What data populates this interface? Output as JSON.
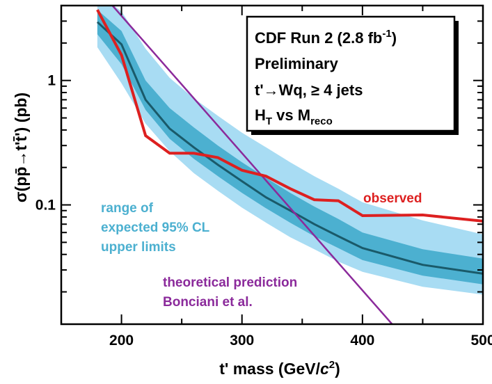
{
  "chart_data": {
    "type": "line",
    "title": "",
    "xlabel": "t' mass  (GeV/c²)",
    "xlabel_parts": {
      "main": "t' mass  (GeV/",
      "italic": "c",
      "sup": "2",
      "close": ")"
    },
    "ylabel": "σ(pp̄→t't̄') (pb)",
    "xlim": [
      150,
      500
    ],
    "ylim": [
      0.011,
      4.0
    ],
    "yscale": "log",
    "x_ticks": [
      200,
      300,
      400,
      500
    ],
    "x_tick_labels": [
      "200",
      "300",
      "400",
      "500"
    ],
    "y_ticks": [
      0.1,
      1
    ],
    "y_tick_labels": [
      "0.1",
      "1"
    ],
    "grid": false,
    "info_box": {
      "line1": "CDF Run 2 (2.8 fb",
      "line1_sup": "-1",
      "line1_close": ")",
      "line2": "Preliminary",
      "line3": "t'→Wq, ≥ 4 jets",
      "line4_h": "H",
      "line4_hsub": "T",
      "line4_mid": " vs M",
      "line4_msub": "reco"
    },
    "annotations": {
      "observed": "observed",
      "band_line1": "range of",
      "band_line2": "expected 95% CL",
      "band_line3": "upper limits",
      "theory_line1": "theoretical prediction",
      "theory_line2": "Bonciani et al."
    },
    "x": [
      180,
      200,
      220,
      240,
      260,
      280,
      300,
      320,
      340,
      360,
      380,
      400,
      450,
      500
    ],
    "series": [
      {
        "role": "band_2sigma",
        "color": "#a8dcf3",
        "low": [
          1.85,
          0.95,
          0.45,
          0.27,
          0.18,
          0.13,
          0.095,
          0.072,
          0.055,
          0.044,
          0.035,
          0.029,
          0.022,
          0.019
        ],
        "high": [
          5.0,
          3.6,
          1.8,
          1.05,
          0.72,
          0.52,
          0.38,
          0.29,
          0.22,
          0.17,
          0.135,
          0.105,
          0.075,
          0.058
        ]
      },
      {
        "role": "band_1sigma",
        "color": "#4cb0d0",
        "low": [
          2.35,
          1.35,
          0.58,
          0.34,
          0.235,
          0.17,
          0.125,
          0.094,
          0.072,
          0.056,
          0.045,
          0.036,
          0.027,
          0.023
        ],
        "high": [
          3.7,
          2.5,
          1.0,
          0.6,
          0.42,
          0.3,
          0.22,
          0.165,
          0.125,
          0.097,
          0.077,
          0.06,
          0.044,
          0.037
        ]
      },
      {
        "role": "expected",
        "color": "#1a5a6a",
        "values": [
          2.95,
          1.95,
          0.7,
          0.41,
          0.29,
          0.21,
          0.155,
          0.115,
          0.09,
          0.07,
          0.056,
          0.045,
          0.033,
          0.028
        ]
      },
      {
        "role": "observed",
        "name": "observed",
        "color": "#dd2020",
        "x": [
          180,
          200,
          220,
          240,
          260,
          280,
          300,
          320,
          340,
          360,
          380,
          400,
          450,
          500
        ],
        "values": [
          3.7,
          1.6,
          0.36,
          0.26,
          0.26,
          0.24,
          0.19,
          0.17,
          0.135,
          0.11,
          0.108,
          0.082,
          0.083,
          0.074
        ]
      },
      {
        "role": "theory",
        "color": "#8b2a9b",
        "x": [
          180,
          425
        ],
        "values": [
          5.5,
          0.0109
        ]
      }
    ]
  }
}
